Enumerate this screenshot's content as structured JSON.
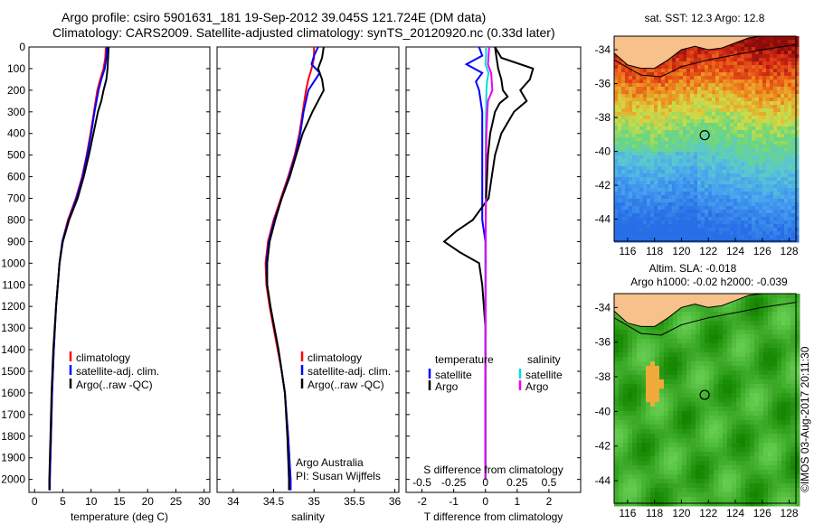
{
  "header": {
    "title_line1": "Argo profile: csiro 5901631_181 19-Sep-2012 39.045S 121.724E (DM data)",
    "title_line2": "Climatology: CARS2009. Satellite-adjusted climatology: synTS_20120920.nc (0.33d later)"
  },
  "colors": {
    "climatology": "#ff0000",
    "satellite": "#0000ff",
    "argo": "#000000",
    "satellite_s": "#00dddd",
    "argo_s": "#ee00ee",
    "land": "#f7c18b"
  },
  "chart_data": [
    {
      "type": "line",
      "name": "temperature",
      "xlabel": "temperature (deg C)",
      "ylim": [
        0,
        2060
      ],
      "xlim": [
        -1,
        31
      ],
      "xticks": [
        0,
        5,
        10,
        15,
        20,
        25,
        30
      ],
      "yticks": [
        0,
        100,
        200,
        300,
        400,
        500,
        600,
        700,
        800,
        900,
        1000,
        1100,
        1200,
        1300,
        1400,
        1500,
        1600,
        1700,
        1800,
        1900,
        2000
      ],
      "legend": [
        "climatology",
        "satellite-adj. clim.",
        "Argo(..raw -QC)"
      ],
      "series": [
        {
          "name": "climatology",
          "color": "#ff0000",
          "depth": [
            0,
            50,
            100,
            150,
            200,
            300,
            400,
            500,
            600,
            700,
            800,
            900,
            1000,
            1200,
            1400,
            1600,
            1800,
            2000,
            2050
          ],
          "values": [
            12.6,
            12.5,
            12.2,
            11.6,
            11.1,
            10.5,
            9.9,
            9.2,
            8.4,
            7.3,
            5.9,
            4.9,
            4.4,
            3.8,
            3.4,
            3.1,
            2.9,
            2.7,
            2.7
          ]
        },
        {
          "name": "satellite-adj. clim.",
          "color": "#0000ff",
          "depth": [
            0,
            50,
            100,
            150,
            200,
            300,
            400,
            500,
            600,
            700,
            800,
            900,
            1000,
            1200,
            1400,
            1600,
            1800,
            2000,
            2050
          ],
          "values": [
            12.8,
            12.7,
            12.4,
            11.8,
            11.3,
            10.6,
            10.0,
            9.3,
            8.5,
            7.4,
            6.0,
            4.9,
            4.4,
            3.8,
            3.4,
            3.1,
            2.9,
            2.7,
            2.7
          ]
        },
        {
          "name": "Argo(..raw -QC)",
          "color": "#000000",
          "depth": [
            0,
            50,
            100,
            150,
            200,
            250,
            300,
            400,
            500,
            600,
            700,
            800,
            900,
            1000,
            1200,
            1400,
            1600,
            1800,
            2000,
            2050
          ],
          "values": [
            13.1,
            13.0,
            12.9,
            12.7,
            12.2,
            11.8,
            11.2,
            10.4,
            9.6,
            8.7,
            7.6,
            6.1,
            5.0,
            4.4,
            3.8,
            3.3,
            3.0,
            2.8,
            2.6,
            2.6
          ]
        }
      ]
    },
    {
      "type": "line",
      "name": "salinity",
      "xlabel": "salinity",
      "ylim": [
        0,
        2060
      ],
      "xlim": [
        33.8,
        36.05
      ],
      "xticks": [
        34,
        34.5,
        35,
        35.5,
        36
      ],
      "legend": [
        "climatology",
        "satellite-adj. clim.",
        "Argo(..raw -QC)"
      ],
      "annotation": [
        "Argo Australia",
        "PI: Susan Wijffels"
      ],
      "series": [
        {
          "name": "climatology",
          "color": "#ff0000",
          "depth": [
            0,
            50,
            100,
            150,
            200,
            300,
            400,
            500,
            600,
            700,
            800,
            900,
            1000,
            1100,
            1200,
            1300,
            1400,
            1500,
            1600,
            1800,
            2000,
            2050
          ],
          "values": [
            35.0,
            35.0,
            34.97,
            34.93,
            34.9,
            34.86,
            34.82,
            34.76,
            34.68,
            34.59,
            34.5,
            34.43,
            34.4,
            34.41,
            34.45,
            34.5,
            34.55,
            34.6,
            34.64,
            34.68,
            34.71,
            34.71
          ]
        },
        {
          "name": "satellite-adj. clim.",
          "color": "#0000ff",
          "depth": [
            0,
            40,
            80,
            120,
            160,
            200,
            300,
            400,
            500,
            600,
            700,
            800,
            900,
            1000,
            1100,
            1200,
            1300,
            1400,
            1500,
            1600,
            1800,
            2000,
            2050
          ],
          "values": [
            35.05,
            35.0,
            34.97,
            35.07,
            35.0,
            34.93,
            34.87,
            34.83,
            34.77,
            34.69,
            34.6,
            34.51,
            34.44,
            34.41,
            34.42,
            34.46,
            34.51,
            34.56,
            34.6,
            34.64,
            34.68,
            34.71,
            34.71
          ]
        },
        {
          "name": "Argo(..raw -QC)",
          "color": "#000000",
          "depth": [
            0,
            50,
            100,
            150,
            200,
            250,
            300,
            400,
            500,
            600,
            700,
            800,
            900,
            1000,
            1100,
            1200,
            1300,
            1400,
            1500,
            1600,
            1800,
            2000,
            2050
          ],
          "values": [
            35.12,
            35.1,
            35.05,
            35.1,
            35.12,
            35.05,
            34.98,
            34.86,
            34.78,
            34.7,
            34.6,
            34.52,
            34.45,
            34.42,
            34.42,
            34.46,
            34.51,
            34.56,
            34.6,
            34.64,
            34.67,
            34.69,
            34.69
          ]
        }
      ]
    },
    {
      "type": "line",
      "name": "difference",
      "xlabel": "T difference from climatology",
      "xlabel_top": "S difference from climatology",
      "ylim": [
        0,
        2060
      ],
      "xlim": [
        -2.5,
        3.0
      ],
      "xticks": [
        -2,
        -1,
        0,
        1,
        2
      ],
      "xticks_top_labels": [
        "-0.5",
        "-0.25",
        "0",
        "0.25",
        "0.5"
      ],
      "legend_left_title": "temperature",
      "legend_right_title": "salinity",
      "legend_left": [
        "satellite",
        "Argo"
      ],
      "legend_right": [
        "satellite",
        "Argo"
      ],
      "series": [
        {
          "name": "T satellite",
          "color": "#0000ff",
          "depth": [
            0,
            40,
            80,
            120,
            160,
            200,
            300,
            400,
            500,
            600,
            700,
            800,
            900,
            1000,
            1200,
            1500,
            2000
          ],
          "values": [
            -0.2,
            -0.1,
            -0.6,
            -0.1,
            -0.3,
            -0.2,
            -0.1,
            -0.1,
            -0.1,
            -0.1,
            -0.1,
            -0.1,
            0.0,
            0.0,
            0.0,
            0.0,
            0.0
          ]
        },
        {
          "name": "T Argo",
          "color": "#000000",
          "depth": [
            0,
            50,
            100,
            150,
            200,
            250,
            300,
            400,
            500,
            600,
            700,
            800,
            850,
            900,
            950,
            1000,
            1100,
            1300,
            1500,
            1800,
            2000
          ],
          "values": [
            0.3,
            0.5,
            1.5,
            1.4,
            1.1,
            1.3,
            0.9,
            0.5,
            0.3,
            0.2,
            0.1,
            -0.4,
            -0.9,
            -1.3,
            -0.8,
            -0.2,
            -0.1,
            0.0,
            0.0,
            0.0,
            0.0
          ]
        },
        {
          "name": "S satellite",
          "color": "#00dddd",
          "depth": [
            0,
            40,
            80,
            120,
            160,
            200,
            300,
            400,
            500,
            600,
            700,
            800,
            1000,
            1500,
            2000
          ],
          "values": [
            0.02,
            0.02,
            0.0,
            0.1,
            0.05,
            0.03,
            0.02,
            0.01,
            0.01,
            0.01,
            0.01,
            0.01,
            0.0,
            0.0,
            0.0
          ]
        },
        {
          "name": "S Argo",
          "color": "#ee00ee",
          "depth": [
            0,
            40,
            80,
            120,
            160,
            200,
            250,
            300,
            400,
            500,
            600,
            800,
            1000,
            1500,
            2000
          ],
          "values": [
            0.12,
            0.1,
            0.08,
            0.18,
            0.2,
            0.22,
            0.08,
            0.06,
            0.03,
            0.02,
            0.02,
            0.01,
            0.01,
            0.0,
            0.0
          ]
        },
        {
          "name": "S Argo black",
          "color": "#000000",
          "depth": [
            0,
            50,
            100,
            150,
            200,
            230,
            260,
            300,
            400,
            500,
            600,
            700
          ],
          "values": [
            0.3,
            0.35,
            0.4,
            0.5,
            0.55,
            0.7,
            0.45,
            0.3,
            0.15,
            0.08,
            0.05,
            0.02
          ]
        }
      ]
    },
    {
      "type": "heatmap",
      "name": "sst-map",
      "title": "sat. SST: 12.3  Argo: 12.8",
      "xticks": [
        116,
        118,
        120,
        122,
        124,
        126,
        128
      ],
      "yticks": [
        -34,
        -36,
        -38,
        -40,
        -42,
        -44
      ],
      "xlim": [
        115,
        128.5
      ],
      "ylim": [
        -45.3,
        -33.2
      ],
      "marker": {
        "lon": 121.724,
        "lat": -39.045
      }
    },
    {
      "type": "heatmap",
      "name": "sla-map",
      "title": "Altim. SLA: -0.018",
      "subtitle": "Argo h1000: -0.02  h2000: -0.039",
      "xticks": [
        116,
        118,
        120,
        122,
        124,
        126,
        128
      ],
      "yticks": [
        -34,
        -36,
        -38,
        -40,
        -42,
        -44
      ],
      "xlim": [
        115,
        128.5
      ],
      "ylim": [
        -45.3,
        -33.2
      ],
      "marker": {
        "lon": 121.724,
        "lat": -39.045
      }
    }
  ],
  "stamp": "©IMOS 03-Aug-2017 20:11:30"
}
